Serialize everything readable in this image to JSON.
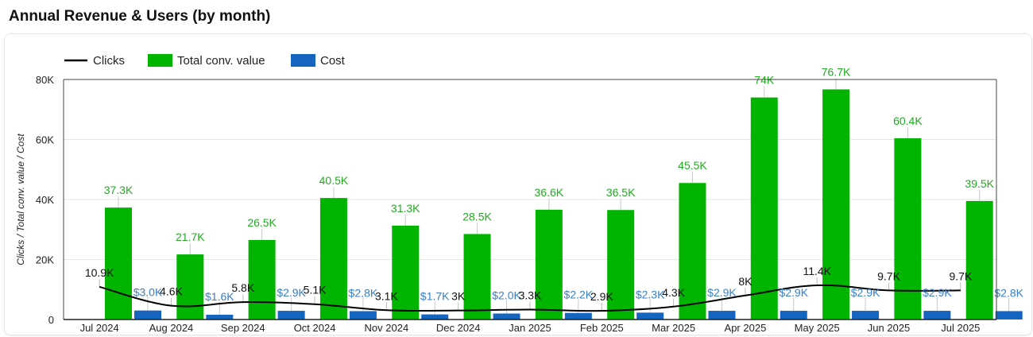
{
  "title": "Annual Revenue & Users (by month)",
  "colors": {
    "clicks": "#000000",
    "conv": "#00b400",
    "cost": "#1565c0",
    "conv_label": "#22aa22",
    "cost_label": "#3a7fc4"
  },
  "chart_data": {
    "type": "bar",
    "categories": [
      "Jul 2024",
      "Aug 2024",
      "Sep 2024",
      "Oct 2024",
      "Nov 2024",
      "Dec 2024",
      "Jan 2025",
      "Feb 2025",
      "Mar 2025",
      "Apr 2025",
      "May 2025",
      "Jun 2025",
      "Jul 2025"
    ],
    "ylabel": "Clicks / Total conv. value / Cost",
    "ylim": [
      0,
      80000
    ],
    "yticks": [
      0,
      20000,
      40000,
      60000,
      80000
    ],
    "ytick_labels": [
      "0",
      "20K",
      "40K",
      "60K",
      "80K"
    ],
    "legend_position": "top-left",
    "grid": true,
    "series": [
      {
        "name": "Clicks",
        "kind": "line",
        "values": [
          10900,
          4600,
          5800,
          5100,
          3100,
          3000,
          3300,
          2900,
          4300,
          8000,
          11400,
          9700,
          9700
        ],
        "labels": [
          "10.9K",
          "4.6K",
          "5.8K",
          "5.1K",
          "3.1K",
          "3K",
          "3.3K",
          "2.9K",
          "4.3K",
          "8K",
          "11.4K",
          "9.7K",
          "9.7K"
        ]
      },
      {
        "name": "Total conv. value",
        "kind": "bar",
        "values": [
          37300,
          21700,
          26500,
          40500,
          31300,
          28500,
          36600,
          36500,
          45500,
          74000,
          76700,
          60400,
          39500
        ],
        "labels": [
          "37.3K",
          "21.7K",
          "26.5K",
          "40.5K",
          "31.3K",
          "28.5K",
          "36.6K",
          "36.5K",
          "45.5K",
          "74K",
          "76.7K",
          "60.4K",
          "39.5K"
        ]
      },
      {
        "name": "Cost",
        "kind": "bar",
        "values": [
          3000,
          1600,
          2900,
          2800,
          1700,
          2000,
          2200,
          2300,
          2900,
          2900,
          2900,
          2900,
          2800
        ],
        "labels": [
          "$3.0K",
          "$1.6K",
          "$2.9K",
          "$2.8K",
          "$1.7K",
          "$2.0K",
          "$2.2K",
          "$2.3K",
          "$2.9K",
          "$2.9K",
          "$2.9K",
          "$2.9K",
          "$2.8K"
        ]
      }
    ]
  }
}
